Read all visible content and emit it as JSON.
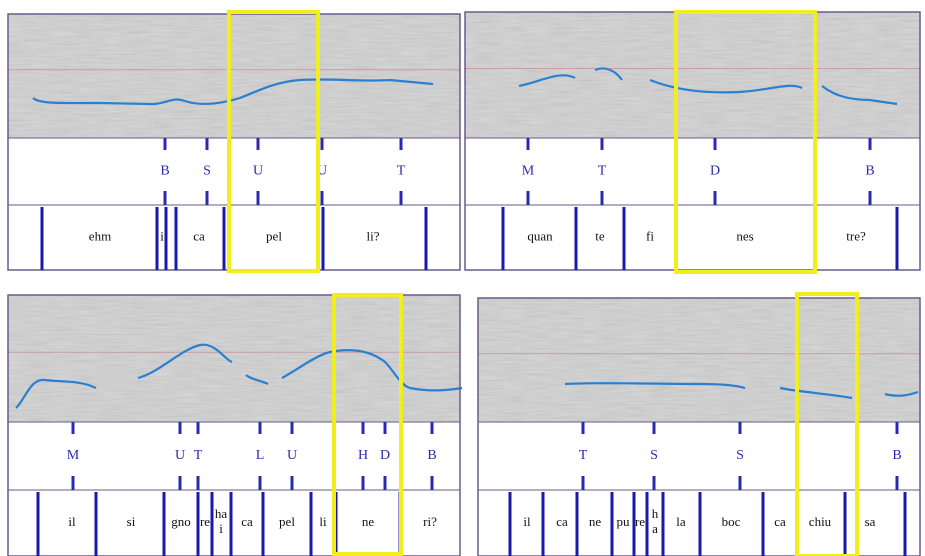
{
  "panels": [
    {
      "tones": [
        "B",
        "S",
        "U",
        "U",
        "T"
      ],
      "syllables": [
        "ehm",
        "i",
        "ca",
        "pel",
        "li?"
      ]
    },
    {
      "tones": [
        "M",
        "T",
        "D",
        "B"
      ],
      "syllables": [
        "quan",
        "te",
        "fi",
        "nes",
        "tre?"
      ]
    },
    {
      "tones": [
        "M",
        "U",
        "T",
        "L",
        "U",
        "H",
        "D",
        "B"
      ],
      "syllables": [
        "il",
        "si",
        "gno",
        "re",
        [
          "ha",
          "i"
        ],
        "ca",
        "pel",
        "li",
        "ne",
        "ri?"
      ]
    },
    {
      "tones": [
        "T",
        "S",
        "S",
        "B"
      ],
      "syllables": [
        "il",
        "ca",
        "ne",
        "pu",
        "re",
        [
          "h",
          "a"
        ],
        "la",
        "boc",
        "ca",
        "chiu",
        "sa"
      ]
    }
  ]
}
